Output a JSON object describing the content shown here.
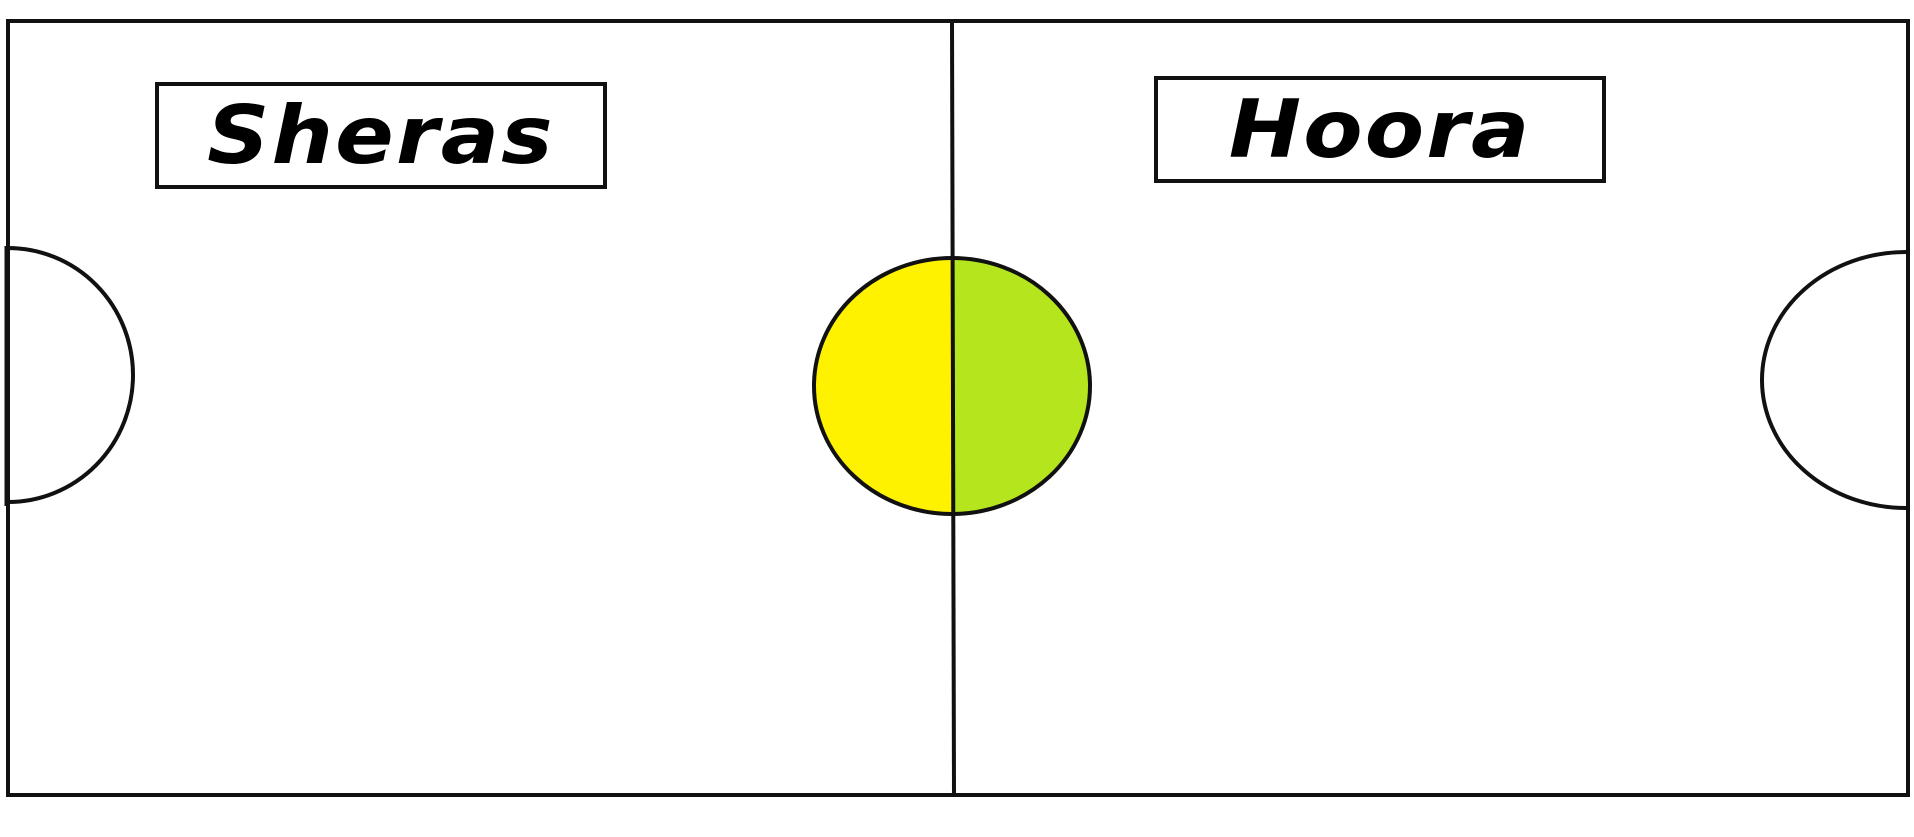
{
  "field": {
    "teams": [
      {
        "name": "Sheras",
        "side": "left",
        "half_color": "#fff200"
      },
      {
        "name": "Hoora",
        "side": "right",
        "half_color": "#b5e61d"
      }
    ],
    "line_color": "#111111",
    "background_color": "#ffffff"
  }
}
